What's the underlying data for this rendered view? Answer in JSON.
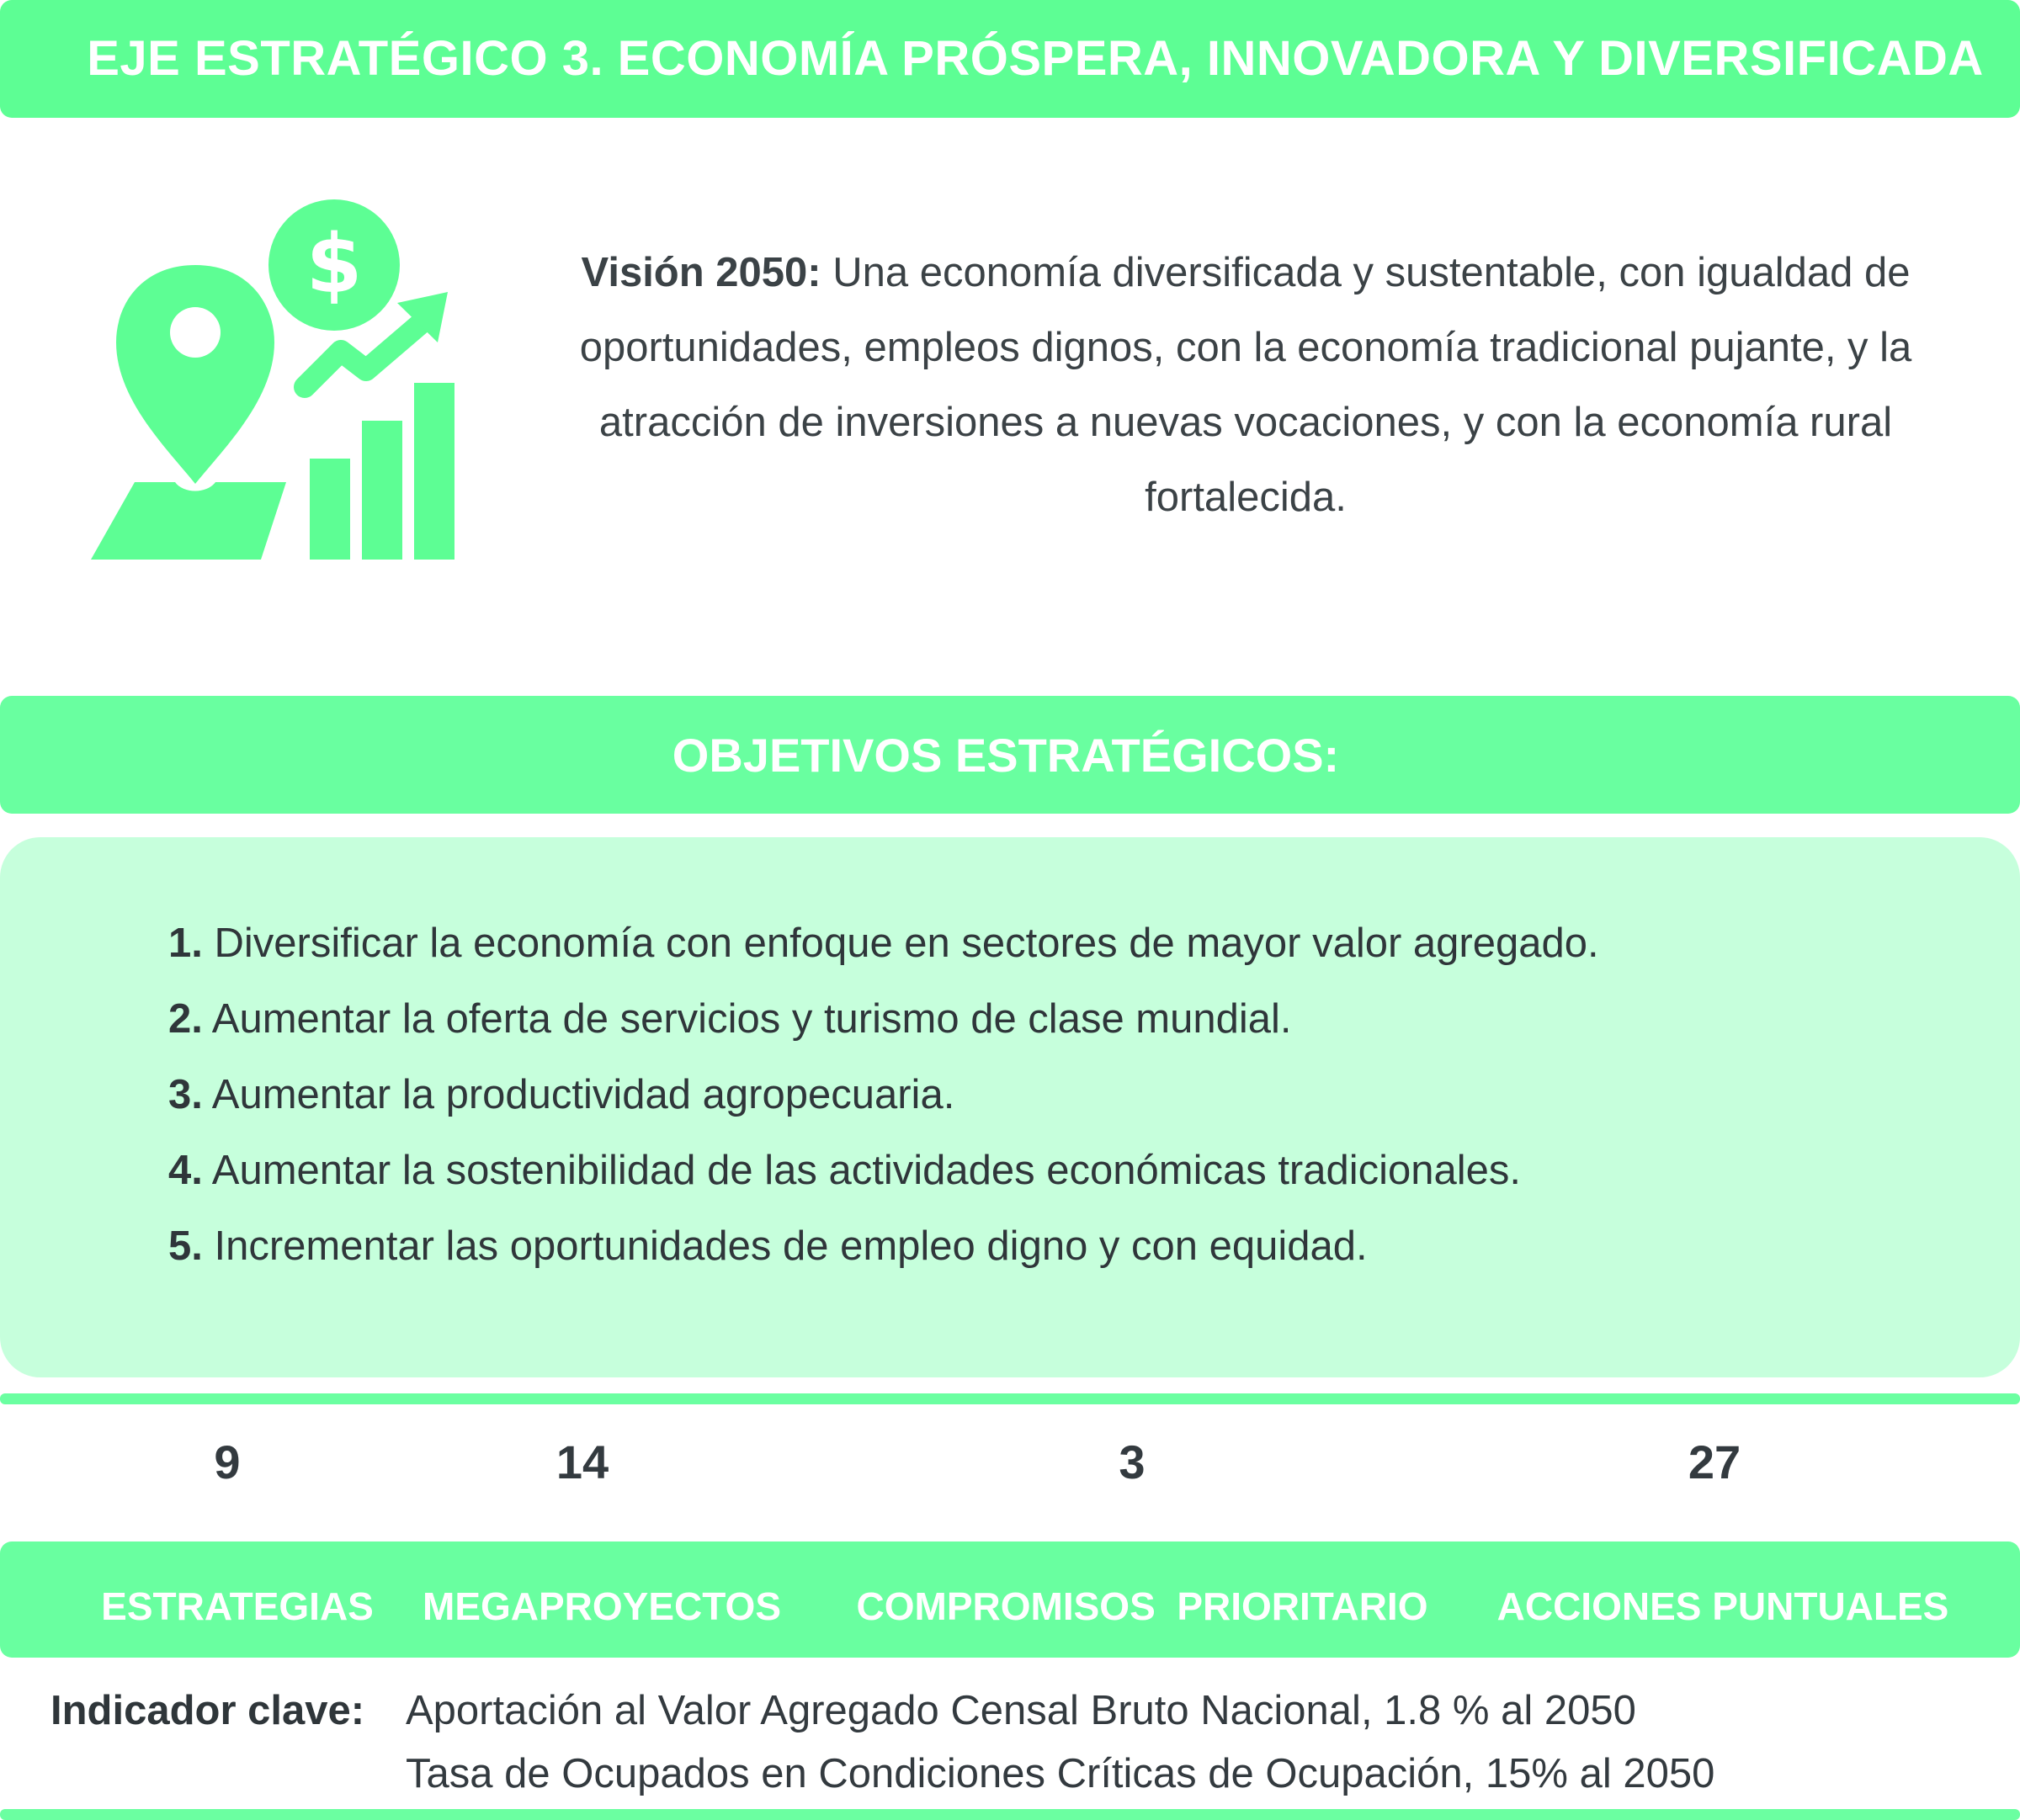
{
  "header": {
    "title": "EJE ESTRATÉGICO 3. ECONOMÍA PRÓSPERA, INNOVADORA Y DIVERSIFICADA"
  },
  "icon": {
    "name": "economy-growth-icon",
    "color": "#5dfe94"
  },
  "vision": {
    "label": "Visión 2050:",
    "text": " Una economía diversificada y sustentable, con igualdad de oportunidades, empleos dignos, con la economía tradicional pujante, y la atracción de inversiones a nuevas vocaciones, y con la economía rural fortalecida."
  },
  "objectives": {
    "title": "OBJETIVOS ESTRATÉGICOS:",
    "items": [
      {
        "num": "1.",
        "text": " Diversificar la economía con enfoque en sectores de mayor valor agregado."
      },
      {
        "num": "2.",
        "text": " Aumentar la oferta de servicios y turismo de clase mundial."
      },
      {
        "num": "3.",
        "text": " Aumentar la productividad agropecuaria."
      },
      {
        "num": "4.",
        "text": " Aumentar la sostenibilidad de las actividades económicas tradicionales."
      },
      {
        "num": "5.",
        "text": " Incrementar las oportunidades de empleo digno y con equidad."
      }
    ]
  },
  "metrics": {
    "counts": [
      "9",
      "14",
      "3",
      "27"
    ],
    "labels": [
      "ESTRATEGIAS",
      "MEGAPROYECTOS",
      "COMPROMISOS  PRIORITARIO",
      "ACCIONES PUNTUALES"
    ]
  },
  "indicator": {
    "label": "Indicador clave:",
    "lines": [
      "Aportación al Valor Agregado Censal Bruto Nacional, 1.8 % al 2050",
      "Tasa de Ocupados en Condiciones Críticas de Ocupación, 15% al 2050"
    ]
  },
  "colors": {
    "accent": "#5dfe94",
    "light": "#c6ffdc",
    "text": "#333a3f"
  }
}
